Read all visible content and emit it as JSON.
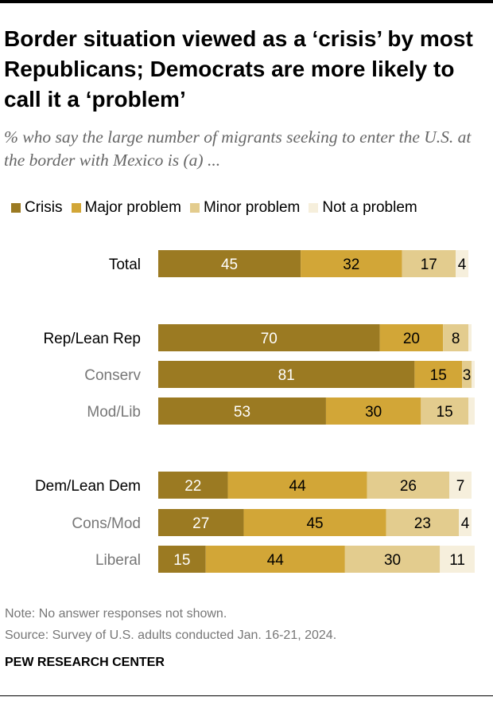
{
  "title": "Border situation viewed as a ‘crisis’ by most Republicans; Democrats are more likely to call it a ‘problem’",
  "subtitle": "% who say the large number of migrants seeking to enter the U.S. at the border with Mexico is (a) ...",
  "legend": [
    {
      "label": "Crisis",
      "color": "#9b7a22"
    },
    {
      "label": "Major problem",
      "color": "#d2a637"
    },
    {
      "label": "Minor problem",
      "color": "#e3cc8e"
    },
    {
      "label": "Not a problem",
      "color": "#f6efdc"
    }
  ],
  "note": "Note: No answer responses not shown.",
  "source": "Source: Survey of U.S. adults conducted Jan. 16-21, 2024.",
  "brand": "PEW RESEARCH CENTER",
  "chart_data": {
    "type": "bar",
    "orientation": "horizontal",
    "stacked": true,
    "xlim": [
      0,
      100
    ],
    "series_names": [
      "Crisis",
      "Major problem",
      "Minor problem",
      "Not a problem"
    ],
    "rows": [
      {
        "label": "Total",
        "level": "main",
        "values": [
          45,
          32,
          17,
          4
        ]
      },
      {
        "label": "Rep/Lean Rep",
        "level": "main",
        "values": [
          70,
          20,
          8,
          1
        ]
      },
      {
        "label": "Conserv",
        "level": "sub",
        "values": [
          81,
          15,
          3,
          1
        ]
      },
      {
        "label": "Mod/Lib",
        "level": "sub",
        "values": [
          53,
          30,
          15,
          2
        ]
      },
      {
        "label": "Dem/Lean Dem",
        "level": "main",
        "values": [
          22,
          44,
          26,
          7
        ]
      },
      {
        "label": "Cons/Mod",
        "level": "sub",
        "values": [
          27,
          45,
          23,
          4
        ]
      },
      {
        "label": "Liberal",
        "level": "sub",
        "values": [
          15,
          44,
          30,
          11
        ]
      }
    ],
    "shown_labels": [
      [
        "45",
        "32",
        "17",
        "4"
      ],
      [
        "70",
        "20",
        "8",
        ""
      ],
      [
        "81",
        "15",
        "3",
        ""
      ],
      [
        "53",
        "30",
        "15",
        ""
      ],
      [
        "22",
        "44",
        "26",
        "7"
      ],
      [
        "27",
        "45",
        "23",
        "4"
      ],
      [
        "15",
        "44",
        "30",
        "11"
      ]
    ],
    "label_colors": [
      "#ffffff",
      "#000000",
      "#000000",
      "#000000"
    ]
  }
}
